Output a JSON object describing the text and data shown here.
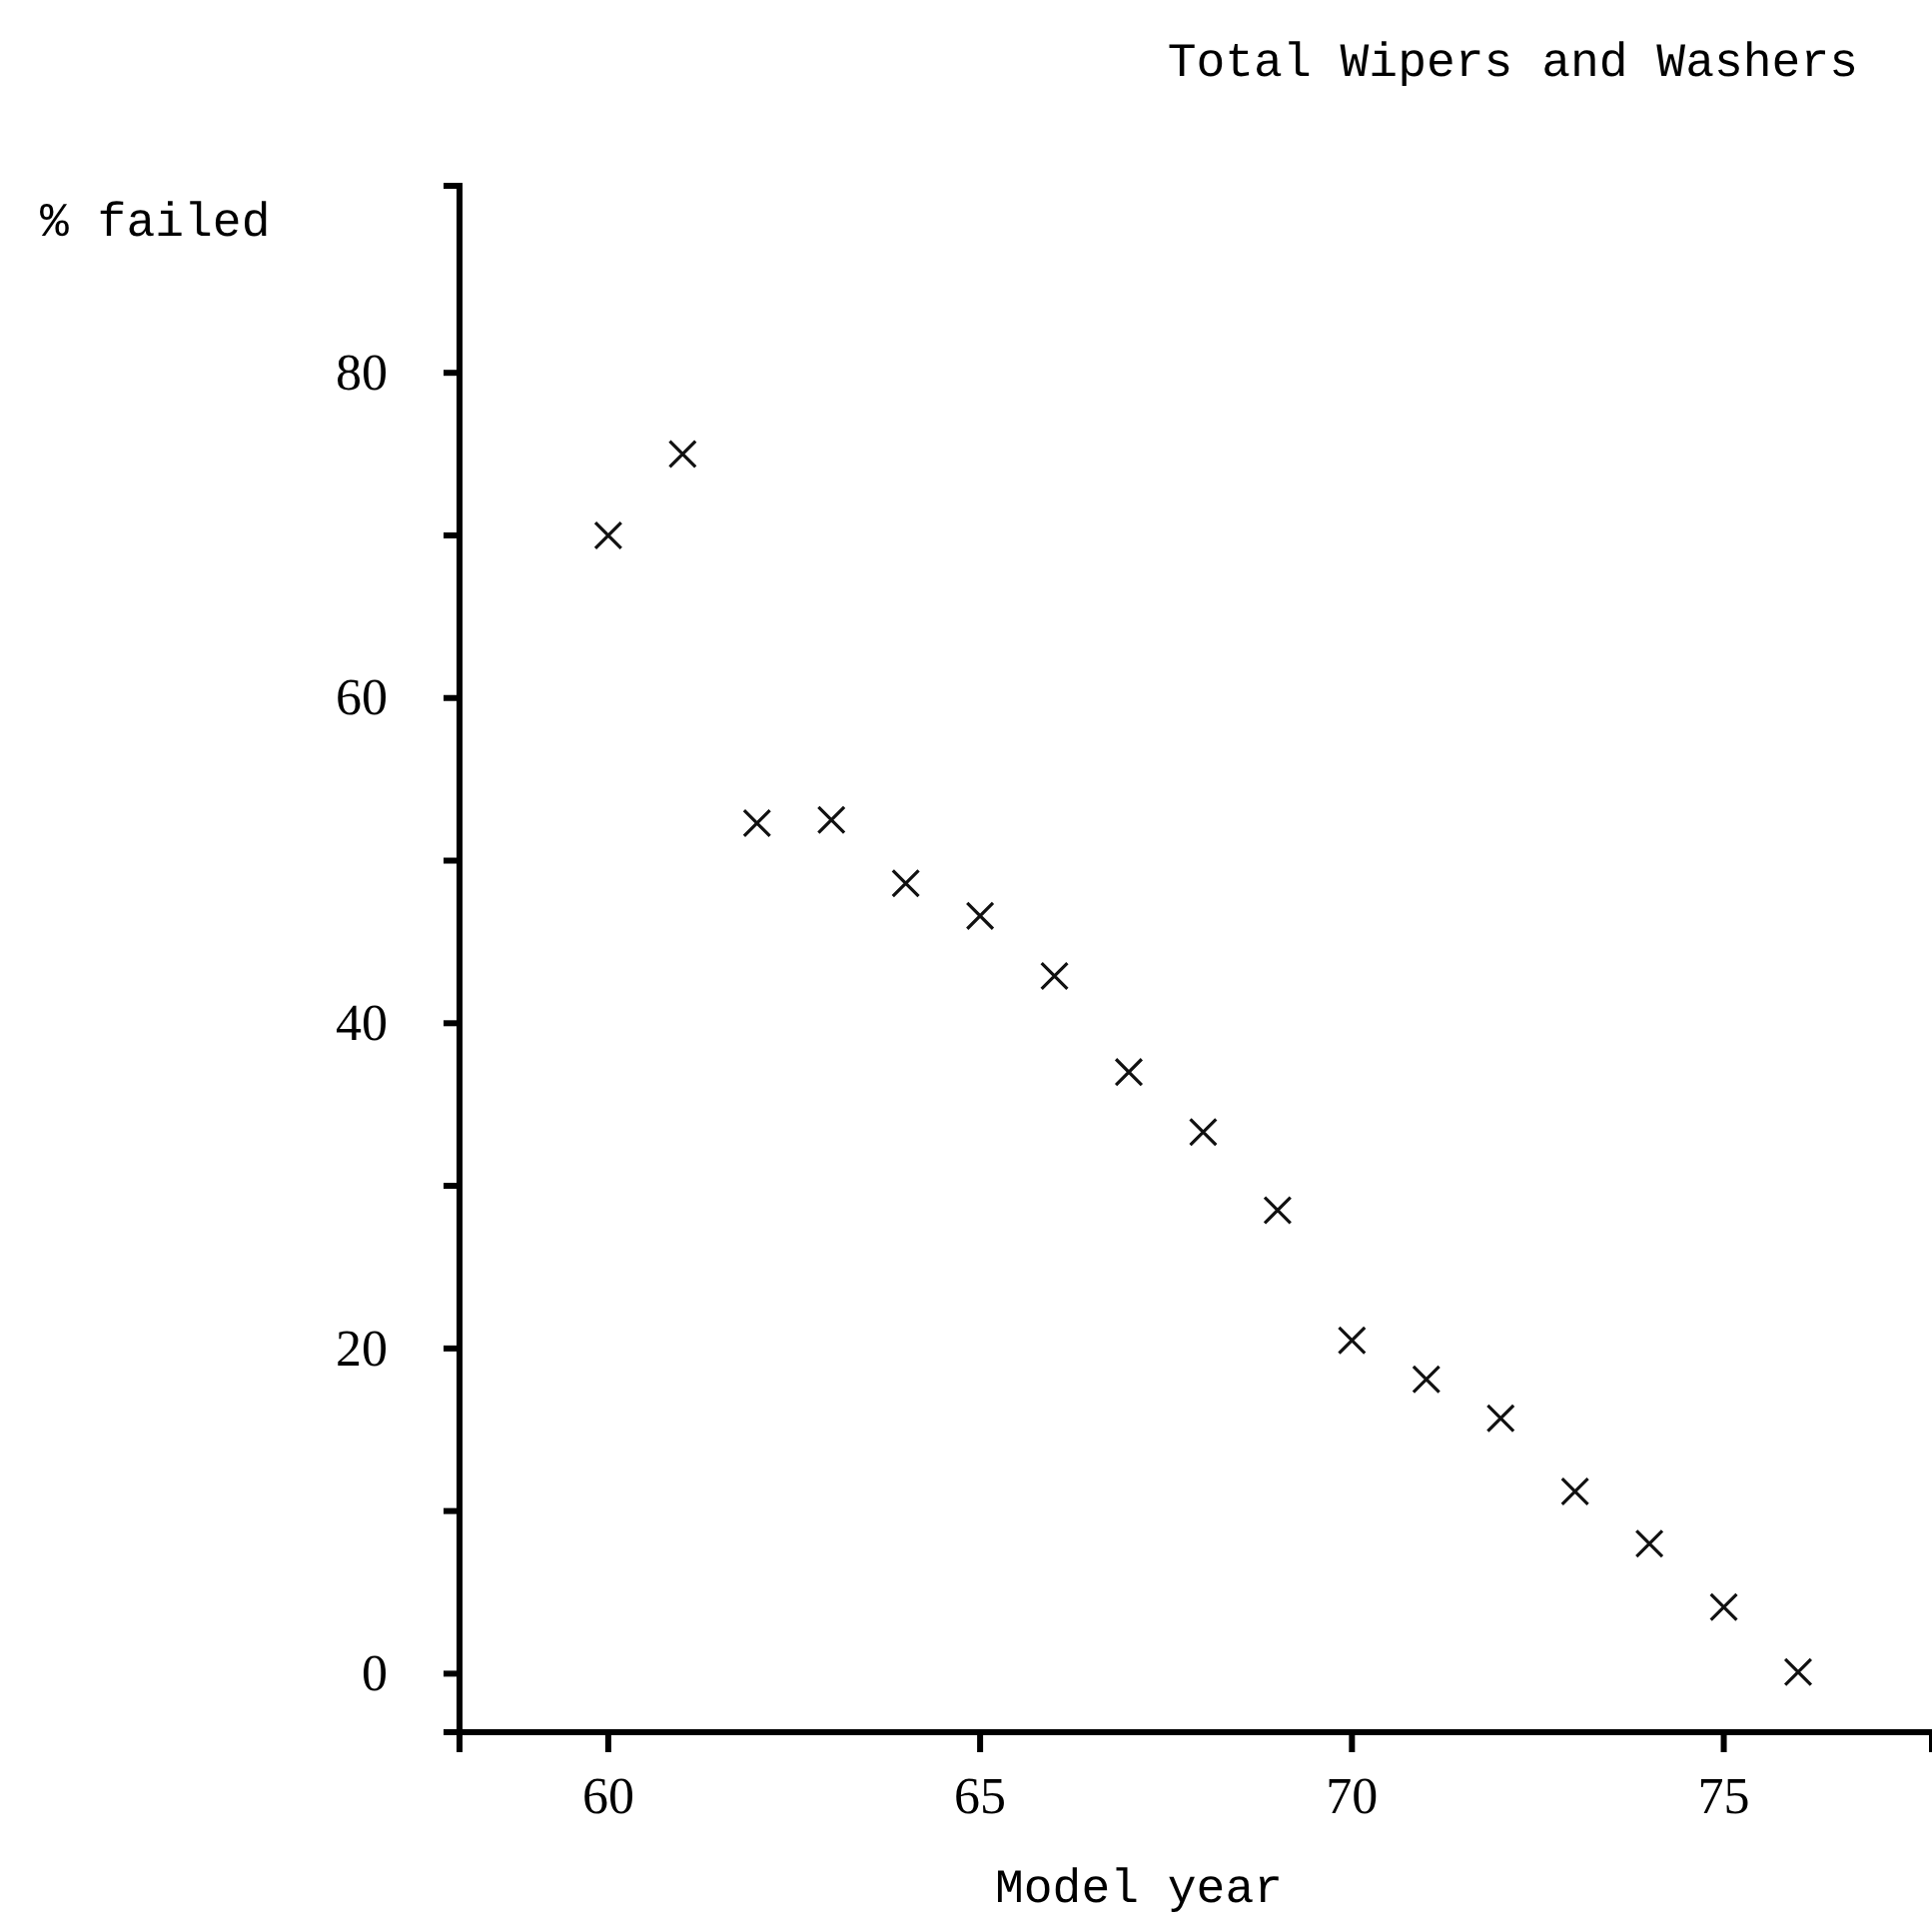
{
  "chart_data": {
    "type": "scatter",
    "title": "Total Wipers and Washers",
    "xlabel": "Model year",
    "ylabel": "% failed",
    "x": [
      60,
      61,
      62,
      63,
      64,
      65,
      66,
      67,
      68,
      69,
      70,
      71,
      72,
      73,
      74,
      75,
      76
    ],
    "values": [
      70,
      75,
      52.3,
      52.5,
      48.6,
      46.6,
      42.9,
      37,
      33.3,
      28.5,
      20.5,
      18.1,
      15.7,
      11.2,
      8,
      4.1,
      0.1
    ],
    "color": "#111111",
    "marker": "cross",
    "xlim": [
      58,
      77.8
    ],
    "xticks": [
      60,
      65,
      70,
      75
    ],
    "ylim": [
      -3.6,
      91.5
    ],
    "yticks": [
      0,
      {
        "value": 10,
        "label": null
      },
      20,
      {
        "value": 30,
        "label": null
      },
      40,
      {
        "value": 50,
        "label": null
      },
      60,
      {
        "value": 70,
        "label": null
      },
      80
    ],
    "grid": false
  }
}
